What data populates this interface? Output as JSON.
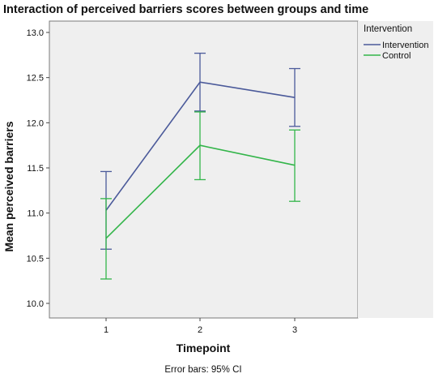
{
  "chart_data": {
    "type": "line",
    "title": "Interaction of perceived barriers scores between groups and time",
    "xlabel": "Timepoint",
    "ylabel": "Mean perceived barriers",
    "x": [
      1,
      2,
      3
    ],
    "x_tick_labels": [
      "1",
      "2",
      "3"
    ],
    "ylim": [
      10.0,
      13.0
    ],
    "y_ticks": [
      10.0,
      10.5,
      11.0,
      11.5,
      12.0,
      12.5,
      13.0
    ],
    "y_tick_labels": [
      "10.0",
      "10.5",
      "11.0",
      "11.5",
      "12.0",
      "12.5",
      "13.0"
    ],
    "legend": {
      "title": "Intervention",
      "position": "right"
    },
    "series": [
      {
        "name": "Intervention",
        "color": "#4b5a9a",
        "values": [
          11.03,
          12.45,
          12.28
        ],
        "ci_low": [
          10.6,
          12.13,
          11.96
        ],
        "ci_high": [
          11.46,
          12.77,
          12.6
        ]
      },
      {
        "name": "Control",
        "color": "#33b54a",
        "values": [
          10.72,
          11.75,
          11.53
        ],
        "ci_low": [
          10.27,
          11.37,
          11.13
        ],
        "ci_high": [
          11.16,
          12.12,
          11.92
        ]
      }
    ],
    "footnote": "Error bars: 95% CI",
    "plot_background": "#efefef",
    "grid": false
  }
}
